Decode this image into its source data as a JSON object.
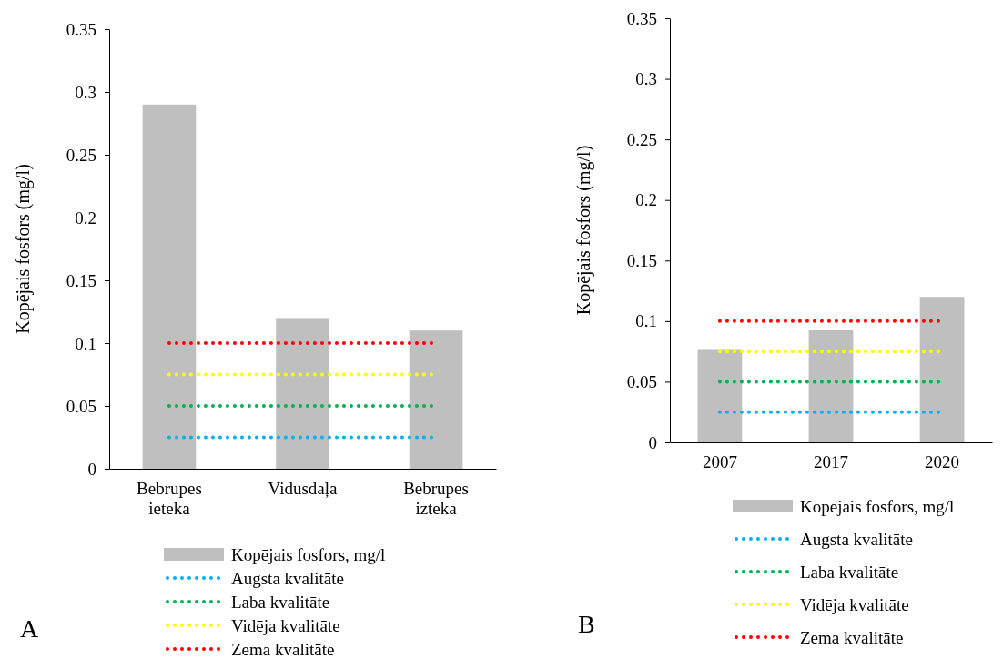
{
  "chart_data": [
    {
      "type": "bar",
      "ylabel": "Kopējais fosfors (mg/l)",
      "categories": [
        "Bebrupes ieteka",
        "Vidusdaļa",
        "Bebrupes izteka"
      ],
      "ylim": [
        0,
        0.35
      ],
      "yticks": [
        0,
        0.05,
        0.1,
        0.15,
        0.2,
        0.25,
        0.3,
        0.35
      ],
      "legend": "bottom",
      "annotations": [
        "A"
      ],
      "series": [
        {
          "name": "Kopējais fosfors, mg/l",
          "color": "#bfbfbf",
          "values": [
            0.29,
            0.12,
            0.11
          ]
        },
        {
          "name": "Augsta kvalitāte",
          "type": "line",
          "color": "#00b0f0",
          "values": [
            0.025,
            0.025,
            0.025
          ],
          "marker": "none",
          "line_style": "dotted"
        },
        {
          "name": "Laba kvalitāte",
          "type": "line",
          "color": "#00b050",
          "values": [
            0.05,
            0.05,
            0.05
          ],
          "marker": "none",
          "line_style": "dotted"
        },
        {
          "name": "Vidēja kvalitāte",
          "type": "line",
          "color": "#ffff00",
          "values": [
            0.075,
            0.075,
            0.075
          ],
          "marker": "none",
          "line_style": "dotted"
        },
        {
          "name": "Zema kvalitāte",
          "type": "line",
          "color": "#ff0000",
          "values": [
            0.1,
            0.1,
            0.1
          ],
          "marker": "none",
          "line_style": "dotted"
        }
      ]
    },
    {
      "type": "bar",
      "ylabel": "Kopējais fosfors (mg/l)",
      "categories": [
        "2007",
        "2017",
        "2020"
      ],
      "ylim": [
        0,
        0.35
      ],
      "yticks": [
        0,
        0.05,
        0.1,
        0.15,
        0.2,
        0.25,
        0.3,
        0.35
      ],
      "legend": "bottom",
      "annotations": [
        "B"
      ],
      "series": [
        {
          "name": "Kopējais fosfors, mg/l",
          "color": "#bfbfbf",
          "values": [
            0.077,
            0.093,
            0.12
          ]
        },
        {
          "name": "Augsta kvalitāte",
          "type": "line",
          "color": "#00b0f0",
          "values": [
            0.025,
            0.025,
            0.025
          ],
          "marker": "none",
          "line_style": "dotted"
        },
        {
          "name": "Laba kvalitāte",
          "type": "line",
          "color": "#00b050",
          "values": [
            0.05,
            0.05,
            0.05
          ],
          "marker": "none",
          "line_style": "dotted"
        },
        {
          "name": "Vidēja kvalitāte",
          "type": "line",
          "color": "#ffff00",
          "values": [
            0.075,
            0.075,
            0.075
          ],
          "marker": "none",
          "line_style": "dotted"
        },
        {
          "name": "Zema kvalitāte",
          "type": "line",
          "color": "#ff0000",
          "values": [
            0.1,
            0.1,
            0.1
          ],
          "marker": "none",
          "line_style": "dotted"
        }
      ]
    }
  ]
}
